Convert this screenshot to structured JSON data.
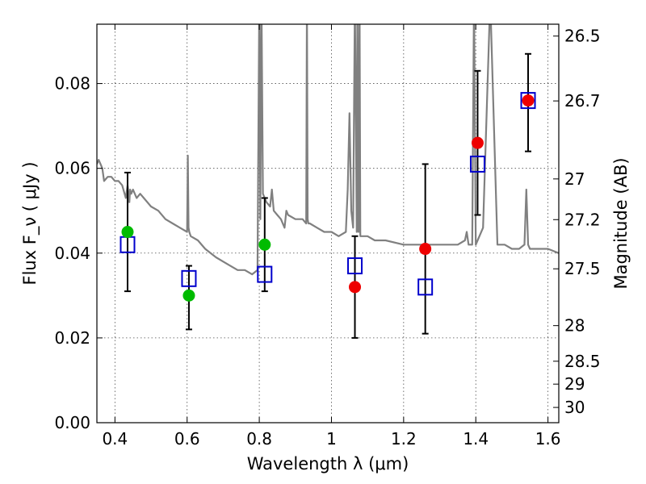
{
  "chart_data": {
    "type": "scatter",
    "xlabel": "Wavelength  λ (μm)",
    "ylabel": "Flux  F_ν  ( μJy )",
    "ylabel_right": "Magnitude (AB)",
    "xlim": [
      0.35,
      1.63
    ],
    "ylim": [
      0.0,
      0.094
    ],
    "grid": true,
    "x_ticks": [
      0.4,
      0.6,
      0.8,
      1.0,
      1.2,
      1.4,
      1.6
    ],
    "x_tick_labels": [
      "0.4",
      "0.6",
      "0.8",
      "1",
      "1.2",
      "1.4",
      "1.6"
    ],
    "y_ticks": [
      0.0,
      0.02,
      0.04,
      0.06,
      0.08
    ],
    "y_tick_labels": [
      "0.00",
      "0.02",
      "0.04",
      "0.06",
      "0.08"
    ],
    "right_ticks": [
      {
        "label": "26.5",
        "flux": 0.0912
      },
      {
        "label": "26.7",
        "flux": 0.0759
      },
      {
        "label": "27",
        "flux": 0.0575
      },
      {
        "label": "27.2",
        "flux": 0.0479
      },
      {
        "label": "27.5",
        "flux": 0.0363
      },
      {
        "label": "28",
        "flux": 0.0229
      },
      {
        "label": "28.5",
        "flux": 0.0145
      },
      {
        "label": "29",
        "flux": 0.0091
      },
      {
        "label": "30",
        "flux": 0.0036
      }
    ],
    "series": [
      {
        "marker": "line",
        "color": "#808080",
        "x": [
          0.35,
          0.355,
          0.36,
          0.365,
          0.37,
          0.38,
          0.39,
          0.4,
          0.41,
          0.42,
          0.43,
          0.435,
          0.44,
          0.442,
          0.445,
          0.45,
          0.46,
          0.47,
          0.48,
          0.5,
          0.52,
          0.54,
          0.56,
          0.58,
          0.6,
          0.602,
          0.604,
          0.606,
          0.61,
          0.63,
          0.65,
          0.68,
          0.7,
          0.72,
          0.74,
          0.76,
          0.78,
          0.795,
          0.8,
          0.803,
          0.806,
          0.81,
          0.82,
          0.83,
          0.835,
          0.84,
          0.85,
          0.86,
          0.87,
          0.875,
          0.88,
          0.9,
          0.92,
          0.93,
          0.932,
          0.934,
          0.936,
          0.94,
          0.96,
          0.98,
          1.0,
          1.02,
          1.04,
          1.045,
          1.05,
          1.055,
          1.06,
          1.065,
          1.07,
          1.072,
          1.075,
          1.078,
          1.08,
          1.1,
          1.12,
          1.15,
          1.2,
          1.25,
          1.3,
          1.35,
          1.37,
          1.375,
          1.38,
          1.39,
          1.395,
          1.4,
          1.42,
          1.44,
          1.46,
          1.48,
          1.5,
          1.52,
          1.535,
          1.54,
          1.545,
          1.55,
          1.56,
          1.58,
          1.6,
          1.63
        ],
        "y": [
          0.061,
          0.062,
          0.061,
          0.06,
          0.057,
          0.058,
          0.058,
          0.057,
          0.057,
          0.056,
          0.053,
          0.056,
          0.052,
          0.055,
          0.054,
          0.055,
          0.053,
          0.054,
          0.053,
          0.051,
          0.05,
          0.048,
          0.047,
          0.046,
          0.045,
          0.063,
          0.046,
          0.045,
          0.044,
          0.043,
          0.041,
          0.039,
          0.038,
          0.037,
          0.036,
          0.036,
          0.035,
          0.036,
          0.1,
          0.048,
          0.1,
          0.054,
          0.052,
          0.051,
          0.055,
          0.05,
          0.049,
          0.048,
          0.046,
          0.05,
          0.049,
          0.048,
          0.048,
          0.047,
          0.1,
          0.048,
          0.047,
          0.047,
          0.046,
          0.045,
          0.045,
          0.044,
          0.045,
          0.055,
          0.073,
          0.05,
          0.046,
          0.1,
          0.045,
          0.1,
          0.045,
          0.1,
          0.044,
          0.044,
          0.043,
          0.043,
          0.042,
          0.042,
          0.042,
          0.042,
          0.043,
          0.045,
          0.042,
          0.042,
          0.1,
          0.042,
          0.046,
          0.1,
          0.042,
          0.042,
          0.041,
          0.041,
          0.042,
          0.055,
          0.042,
          0.041,
          0.041,
          0.041,
          0.041,
          0.04
        ]
      },
      {
        "marker": "errorbar",
        "color": "#000000",
        "x": [
          0.435,
          0.605,
          0.815,
          1.065,
          1.26,
          1.405,
          1.545
        ],
        "ylow": [
          0.031,
          0.022,
          0.031,
          0.02,
          0.021,
          0.049,
          0.064
        ],
        "yhigh": [
          0.059,
          0.037,
          0.053,
          0.044,
          0.061,
          0.083,
          0.087
        ]
      },
      {
        "marker": "square",
        "color": "#0000cc",
        "x": [
          0.435,
          0.605,
          0.815,
          1.065,
          1.26,
          1.405,
          1.545
        ],
        "y": [
          0.042,
          0.034,
          0.035,
          0.037,
          0.032,
          0.061,
          0.076
        ]
      },
      {
        "marker": "circle",
        "color": "#00bb00",
        "x": [
          0.435,
          0.605,
          0.815
        ],
        "y": [
          0.045,
          0.03,
          0.042
        ]
      },
      {
        "marker": "circle",
        "color": "#ee0000",
        "x": [
          1.065,
          1.26,
          1.405,
          1.545
        ],
        "y": [
          0.032,
          0.041,
          0.066,
          0.076
        ]
      }
    ]
  }
}
